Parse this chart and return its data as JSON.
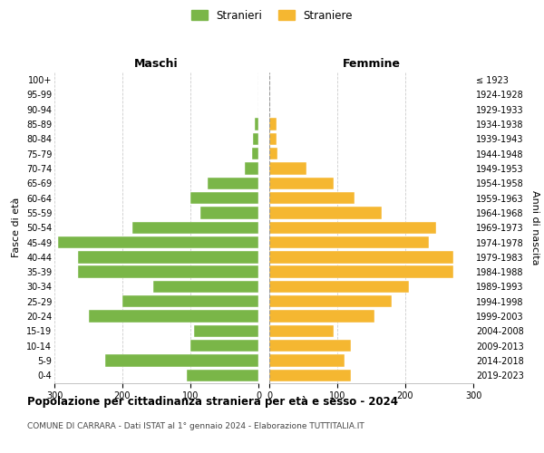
{
  "age_groups": [
    "0-4",
    "5-9",
    "10-14",
    "15-19",
    "20-24",
    "25-29",
    "30-34",
    "35-39",
    "40-44",
    "45-49",
    "50-54",
    "55-59",
    "60-64",
    "65-69",
    "70-74",
    "75-79",
    "80-84",
    "85-89",
    "90-94",
    "95-99",
    "100+"
  ],
  "birth_years": [
    "2019-2023",
    "2014-2018",
    "2009-2013",
    "2004-2008",
    "1999-2003",
    "1994-1998",
    "1989-1993",
    "1984-1988",
    "1979-1983",
    "1974-1978",
    "1969-1973",
    "1964-1968",
    "1959-1963",
    "1954-1958",
    "1949-1953",
    "1944-1948",
    "1939-1943",
    "1934-1938",
    "1929-1933",
    "1924-1928",
    "≤ 1923"
  ],
  "males": [
    105,
    225,
    100,
    95,
    250,
    200,
    155,
    265,
    265,
    295,
    185,
    85,
    100,
    75,
    20,
    10,
    8,
    5,
    0,
    0,
    0
  ],
  "females": [
    120,
    110,
    120,
    95,
    155,
    180,
    205,
    270,
    270,
    235,
    245,
    165,
    125,
    95,
    55,
    12,
    10,
    10,
    0,
    0,
    0
  ],
  "male_color": "#7ab648",
  "female_color": "#f5b731",
  "title": "Popolazione per cittadinanza straniera per età e sesso - 2024",
  "subtitle": "COMUNE DI CARRARA - Dati ISTAT al 1° gennaio 2024 - Elaborazione TUTTITALIA.IT",
  "label_maschi": "Maschi",
  "label_femmine": "Femmine",
  "ylabel_left": "Fasce di età",
  "ylabel_right": "Anni di nascita",
  "xlim": 300,
  "xticks": [
    0,
    100,
    200,
    300
  ],
  "legend_stranieri": "Stranieri",
  "legend_straniere": "Straniere",
  "background_color": "#ffffff",
  "grid_color": "#cccccc"
}
